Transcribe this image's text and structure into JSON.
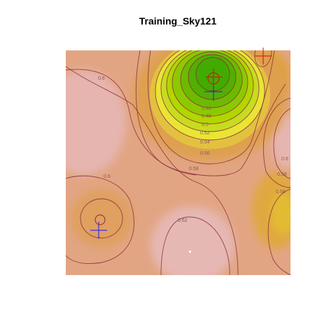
{
  "chart_data": {
    "type": "heatmap",
    "title": "Training_Sky121",
    "xlabel": "",
    "ylabel": "",
    "axes_visible": false,
    "colormap": [
      "#e6b5b0",
      "#e2a583",
      "#e0a070",
      "#dfa055",
      "#e6c238",
      "#e9e535",
      "#b2d600",
      "#8dc900",
      "#41ab00"
    ],
    "contour_levels": [
      "0.3",
      "0.32",
      "0.34",
      "0.36",
      "0.38",
      "0.40",
      "0.42",
      "0.44",
      "0.46",
      "0.48",
      "0.5",
      "0.52",
      "0.54",
      "0.56",
      "0.58",
      "0.6",
      "0.62"
    ],
    "contour_labels": [
      {
        "text": "0.6"
      },
      {
        "text": "0.46"
      },
      {
        "text": "0.48"
      },
      {
        "text": "0.5"
      },
      {
        "text": "0.52"
      },
      {
        "text": "0.54"
      },
      {
        "text": "0.56"
      },
      {
        "text": "0.58"
      },
      {
        "text": "0.58"
      },
      {
        "text": "0.58"
      },
      {
        "text": "0.6"
      },
      {
        "text": "0.6"
      },
      {
        "text": "0.62"
      }
    ],
    "markers": [
      {
        "type": "blue-plus",
        "name": "halo-estimate-1"
      },
      {
        "type": "blue-plus",
        "name": "halo-estimate-2"
      },
      {
        "type": "red-plus",
        "name": "halo-true-1"
      },
      {
        "type": "red-plus",
        "name": "halo-true-2"
      },
      {
        "type": "red-circle",
        "name": "halo-circle-1"
      },
      {
        "type": "red-circle",
        "name": "halo-circle-2"
      }
    ],
    "colors": {
      "blue_marker": "#1a1aff",
      "red_marker": "#d01010",
      "contour": "#8b2a3a"
    }
  }
}
